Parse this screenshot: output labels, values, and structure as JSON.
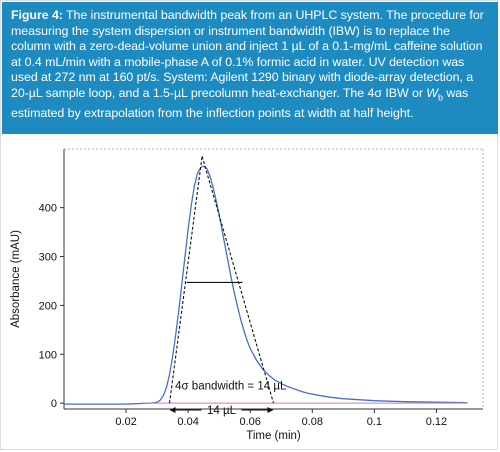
{
  "caption": {
    "label": "Figure 4:",
    "text_part1": " The instrumental bandwidth peak from an UHPLC system. The procedure for measuring the system dispersion or instrument bandwidth (IBW) is to replace the column with a zero-dead-volume union and inject 1 µL of a 0.1-mg/mL caffeine solution at 0.4 mL/min with a mobile-phase A of 0.1% formic acid in water. UV detection was used at 272 nm at 160 pt/s. System: Agilent 1290 binary with diode-array detection, a 20-µL sample loop, and a 1.5-µL precolumn heat-exchanger. The 4σ IBW or ",
    "wb_main": "W",
    "wb_sub": "b",
    "text_part2": " was estimated by extrapolation from the inflection points at width at half height."
  },
  "chart_data": {
    "type": "line",
    "xlabel": "Time (min)",
    "ylabel": "Absorbance (mAU)",
    "xlim": [
      0,
      0.135
    ],
    "ylim": [
      -12,
      520
    ],
    "x_ticks": [
      0.02,
      0.04,
      0.06,
      0.08,
      0.1,
      0.12
    ],
    "x_tick_labels": [
      "0.02",
      "0.04",
      "0.06",
      "0.08",
      "0.1",
      "0.12"
    ],
    "y_ticks": [
      0,
      100,
      200,
      300,
      400
    ],
    "y_tick_labels": [
      "0",
      "100",
      "200",
      "300",
      "400"
    ],
    "series": [
      {
        "color": "#4a6fc9",
        "x": [
          0.0,
          0.02,
          0.024,
          0.028,
          0.03,
          0.031,
          0.032,
          0.033,
          0.034,
          0.035,
          0.036,
          0.037,
          0.038,
          0.039,
          0.04,
          0.041,
          0.042,
          0.043,
          0.044,
          0.045,
          0.046,
          0.047,
          0.048,
          0.049,
          0.05,
          0.051,
          0.052,
          0.053,
          0.054,
          0.055,
          0.056,
          0.057,
          0.058,
          0.059,
          0.06,
          0.062,
          0.064,
          0.066,
          0.068,
          0.07,
          0.072,
          0.075,
          0.078,
          0.082,
          0.086,
          0.09,
          0.095,
          0.1,
          0.11,
          0.12,
          0.13
        ],
        "y": [
          -2,
          -2,
          -1,
          0,
          2,
          6,
          15,
          32,
          58,
          95,
          140,
          190,
          245,
          300,
          355,
          405,
          445,
          470,
          482,
          485,
          480,
          465,
          442,
          415,
          385,
          352,
          318,
          285,
          252,
          222,
          195,
          170,
          148,
          128,
          112,
          88,
          70,
          57,
          47,
          40,
          34,
          27,
          21,
          16,
          12,
          9,
          7,
          5,
          3,
          2,
          1
        ]
      },
      {
        "color": "#d07ab8",
        "x": [
          0.025,
          0.13
        ],
        "y": [
          0,
          0
        ]
      }
    ],
    "annotations": {
      "tangent_left": {
        "x": [
          0.034,
          0.0445
        ],
        "y": [
          0,
          505
        ]
      },
      "tangent_right": {
        "x": [
          0.0445,
          0.0675
        ],
        "y": [
          505,
          0
        ]
      },
      "half_height": {
        "x": [
          0.0395,
          0.0575
        ],
        "y": [
          247,
          247
        ]
      },
      "width_arrow": {
        "x": [
          0.034,
          0.0675
        ],
        "y": [
          -14,
          -14
        ]
      },
      "bandwidth_label": "4σ bandwidth = 14 µL",
      "width_label": "14 µL"
    }
  }
}
